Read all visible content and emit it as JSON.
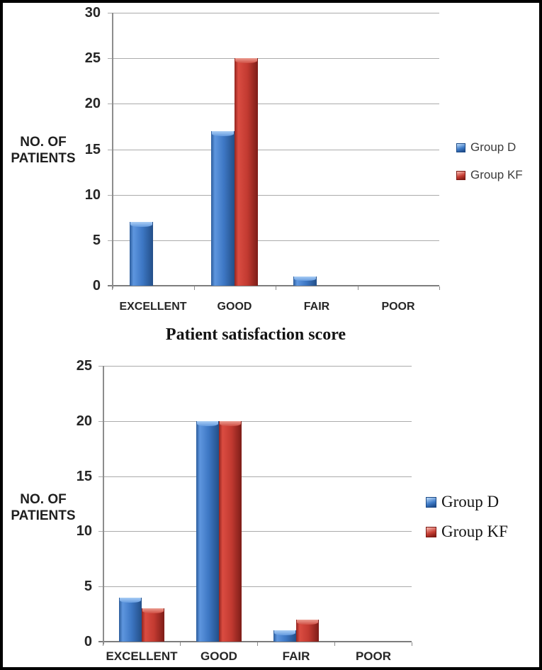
{
  "figure": {
    "background": "#ffffff",
    "border_color": "#000000"
  },
  "chart_data": [
    {
      "type": "bar",
      "ylabel_lines": [
        "NO. OF",
        "PATIENTS"
      ],
      "categories": [
        "EXCELLENT",
        "GOOD",
        "FAIR",
        "POOR"
      ],
      "series": [
        {
          "name": "Group D",
          "color": "#3b76c6",
          "values": [
            7,
            17,
            1,
            0
          ]
        },
        {
          "name": "Group KF",
          "color": "#c23a31",
          "values": [
            0,
            25,
            0,
            0
          ]
        }
      ],
      "ylim": [
        0,
        30
      ],
      "yticks": [
        0,
        5,
        10,
        15,
        20,
        25,
        30
      ],
      "grid": true,
      "legend_position": "right"
    },
    {
      "type": "bar",
      "title": "Patient satisfaction score",
      "ylabel_lines": [
        "NO. OF",
        "PATIENTS"
      ],
      "categories": [
        "EXCELLENT",
        "GOOD",
        "FAIR",
        "POOR"
      ],
      "series": [
        {
          "name": "Group D",
          "color": "#3b76c6",
          "values": [
            4,
            20,
            1,
            0
          ]
        },
        {
          "name": "Group KF",
          "color": "#c23a31",
          "values": [
            3,
            20,
            2,
            0
          ]
        }
      ],
      "ylim": [
        0,
        25
      ],
      "yticks": [
        0,
        5,
        10,
        15,
        20,
        25
      ],
      "grid": true,
      "legend_position": "right"
    }
  ],
  "colors": {
    "bar_blue": "#3b76c6",
    "bar_red": "#c23a31",
    "gridline": "#ababab",
    "axis": "#8c8c8c",
    "text": "#262626"
  }
}
